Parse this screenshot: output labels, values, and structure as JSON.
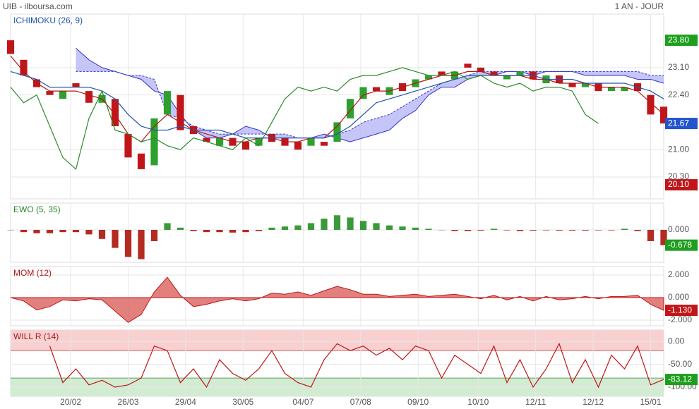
{
  "header": {
    "title": "UIB - ilboursa.com",
    "period": "1 AN - JOUR"
  },
  "chart_data": [
    {
      "type": "candlestick",
      "title": "ICHIMOKU (26, 9)",
      "title_color": "#2255aa",
      "x": [
        0,
        5,
        10,
        15,
        20,
        25,
        30,
        35,
        40,
        45,
        50,
        55,
        60,
        65,
        70,
        75,
        80,
        85,
        90,
        95,
        100,
        105,
        110,
        115,
        120,
        125,
        130,
        135,
        140,
        145,
        150,
        155,
        160,
        165,
        170,
        175,
        180,
        185,
        190,
        195,
        200,
        205,
        210,
        215,
        220,
        225,
        230,
        235,
        240,
        245,
        250
      ],
      "xlim": [
        0,
        250
      ],
      "open": [
        23.8,
        23.3,
        22.8,
        22.5,
        22.3,
        22.7,
        22.5,
        22.2,
        22.3,
        21.4,
        20.9,
        20.6,
        21.9,
        22.4,
        21.6,
        21.3,
        21.1,
        21.3,
        21.2,
        21.1,
        21.4,
        21.3,
        21.2,
        21.1,
        21.2,
        21.2,
        21.8,
        22.3,
        22.6,
        22.4,
        22.7,
        22.6,
        22.8,
        23.0,
        22.8,
        23.2,
        23.1,
        23.0,
        22.8,
        22.9,
        23.0,
        22.7,
        22.9,
        22.7,
        22.6,
        22.7,
        22.5,
        22.5,
        22.7,
        22.4,
        22.1
      ],
      "close": [
        23.45,
        22.9,
        22.6,
        22.4,
        22.5,
        22.6,
        22.2,
        22.4,
        21.6,
        20.8,
        20.5,
        21.8,
        22.5,
        21.5,
        21.4,
        21.2,
        21.3,
        21.1,
        21.0,
        21.3,
        21.2,
        21.1,
        21.0,
        21.3,
        21.1,
        21.7,
        22.3,
        22.6,
        22.5,
        22.6,
        22.5,
        22.8,
        22.9,
        22.9,
        23.0,
        23.1,
        23.0,
        22.9,
        22.9,
        23.0,
        22.8,
        22.9,
        22.7,
        22.6,
        22.7,
        22.5,
        22.6,
        22.6,
        22.5,
        21.9,
        21.67
      ],
      "up_color": "#2ea02e",
      "down_color": "#c0161a",
      "lines": [
        {
          "color": "#b01818",
          "values": [
            23.4,
            23.0,
            22.7,
            22.5,
            22.5,
            22.5,
            22.4,
            22.3,
            21.9,
            21.4,
            21.2,
            21.6,
            21.9,
            21.7,
            21.5,
            21.4,
            21.3,
            21.2,
            21.2,
            21.3,
            21.3,
            21.2,
            21.2,
            21.3,
            21.3,
            21.6,
            22.0,
            22.4,
            22.5,
            22.5,
            22.6,
            22.7,
            22.8,
            22.9,
            22.9,
            23.0,
            23.0,
            22.9,
            22.9,
            22.9,
            22.8,
            22.8,
            22.7,
            22.7,
            22.7,
            22.6,
            22.6,
            22.6,
            22.5,
            22.2,
            21.9
          ]
        },
        {
          "color": "#2255aa",
          "values": [
            23.0,
            22.9,
            22.8,
            22.6,
            22.6,
            22.6,
            22.6,
            22.5,
            22.3,
            21.9,
            21.6,
            21.5,
            21.5,
            21.6,
            21.5,
            21.5,
            21.5,
            21.4,
            21.3,
            21.3,
            21.3,
            21.3,
            21.3,
            21.3,
            21.3,
            21.4,
            21.6,
            21.9,
            22.2,
            22.3,
            22.4,
            22.5,
            22.6,
            22.7,
            22.8,
            22.9,
            22.9,
            22.9,
            22.9,
            22.9,
            22.9,
            22.8,
            22.8,
            22.8,
            22.7,
            22.7,
            22.7,
            22.7,
            22.6,
            22.5,
            22.3
          ]
        },
        {
          "color": "#2a8a2a",
          "values": [
            22.6,
            22.2,
            22.4,
            21.6,
            20.8,
            20.5,
            21.8,
            22.5,
            21.5,
            21.4,
            21.2,
            21.3,
            21.1,
            21.0,
            21.3,
            21.2,
            21.1,
            21.0,
            21.3,
            21.1,
            21.7,
            22.3,
            22.6,
            22.5,
            22.6,
            22.5,
            22.8,
            22.9,
            22.9,
            23.0,
            23.1,
            23.0,
            22.9,
            22.9,
            23.0,
            22.8,
            22.9,
            22.7,
            22.6,
            22.7,
            22.5,
            22.6,
            22.6,
            22.5,
            21.9,
            21.67,
            null,
            null,
            null,
            null,
            null
          ]
        }
      ],
      "cloud": {
        "color": "#b7b7f5",
        "edge": "#3333cc",
        "a": [
          null,
          null,
          null,
          null,
          null,
          23.6,
          23.3,
          23.1,
          23.0,
          22.9,
          22.8,
          22.5,
          22.4,
          21.9,
          21.5,
          21.3,
          21.3,
          21.4,
          21.6,
          21.5,
          21.3,
          21.3,
          21.3,
          21.3,
          21.4,
          21.3,
          21.2,
          21.3,
          21.4,
          21.5,
          21.8,
          22.0,
          22.4,
          22.6,
          22.6,
          22.8,
          22.9,
          22.9,
          23.0,
          23.0,
          22.9,
          23.0,
          23.0,
          23.0,
          22.9,
          22.9,
          22.9,
          22.9,
          22.8,
          22.8,
          22.7
        ],
        "b": [
          null,
          null,
          null,
          null,
          null,
          23.0,
          23.0,
          23.0,
          23.0,
          22.9,
          22.9,
          22.8,
          21.9,
          21.8,
          21.6,
          21.5,
          21.4,
          21.4,
          21.4,
          21.4,
          21.4,
          21.4,
          21.3,
          21.3,
          21.3,
          21.4,
          21.5,
          21.7,
          21.8,
          21.9,
          22.1,
          22.3,
          22.5,
          22.7,
          22.8,
          22.9,
          23.0,
          23.0,
          23.0,
          23.0,
          23.0,
          23.0,
          23.0,
          23.0,
          23.0,
          23.0,
          23.0,
          23.0,
          23.0,
          22.9,
          22.9
        ]
      },
      "ylim": [
        19.74,
        24.47
      ],
      "yticks": [
        {
          "value": 23.1,
          "label": "23.10"
        },
        {
          "value": 22.4,
          "label": "22.40"
        },
        {
          "value": 21.0,
          "label": "21.00"
        },
        {
          "value": 20.3,
          "label": "20.30"
        }
      ],
      "badges": [
        {
          "value": 23.8,
          "label": "23.80",
          "color": "#1e9e1e"
        },
        {
          "value": 21.67,
          "label": "21.67",
          "color": "#2255cc"
        },
        {
          "value": 20.1,
          "label": "20.10",
          "color": "#c0161a"
        }
      ],
      "grid": true
    },
    {
      "type": "bar",
      "title": "EWO (5, 35)",
      "title_color": "#2a8a2a",
      "values": [
        0,
        -0.1,
        -0.15,
        -0.15,
        -0.1,
        -0.1,
        -0.2,
        -0.4,
        -0.8,
        -1.2,
        -1.3,
        -0.5,
        0.3,
        0.1,
        -0.05,
        -0.1,
        -0.1,
        -0.12,
        -0.1,
        -0.05,
        0.1,
        0.15,
        0.2,
        0.3,
        0.5,
        0.65,
        0.55,
        0.4,
        0.3,
        0.2,
        0.15,
        0.1,
        0.05,
        0,
        -0.05,
        -0.05,
        -0.03,
        0.05,
        -0.02,
        -0.05,
        -0.03,
        -0.02,
        -0.03,
        -0.03,
        -0.03,
        -0.02,
        -0.02,
        0.05,
        -0.05,
        -0.5,
        -0.678
      ],
      "up_color": "#3a9a3a",
      "down_color": "#b52a22",
      "ylim": [
        -1.44,
        1.19
      ],
      "yticks": [
        {
          "value": 0,
          "label": "0.000"
        }
      ],
      "badges": [
        {
          "value": -0.678,
          "label": "-0.678",
          "color": "#1e9e1e"
        }
      ],
      "grid": true
    },
    {
      "type": "area",
      "title": "MOM (12)",
      "title_color": "#b01818",
      "values": [
        0,
        -0.3,
        -1.1,
        -0.8,
        -0.2,
        -0.3,
        -0.1,
        -0.2,
        -1.2,
        -2.2,
        -1.5,
        0.5,
        1.8,
        0.2,
        -0.8,
        -0.6,
        -0.3,
        -0.1,
        -0.3,
        -0.1,
        0.4,
        0.3,
        0.5,
        0.2,
        0.6,
        1.0,
        0.7,
        0.3,
        0.3,
        0.1,
        0.2,
        0.3,
        0.1,
        0.2,
        0.3,
        0.1,
        -0.1,
        0.2,
        -0.2,
        0.1,
        -0.3,
        0.1,
        -0.2,
        -0.1,
        0.1,
        -0.1,
        0.1,
        0.1,
        0.2,
        -0.6,
        -1.13
      ],
      "color": "#c0161a",
      "fill": "#dd6a66",
      "ylim": [
        -2.5,
        2.75
      ],
      "yticks": [
        {
          "value": 2,
          "label": "2.000"
        },
        {
          "value": 0,
          "label": "0.000"
        },
        {
          "value": -2,
          "label": "-2.000"
        }
      ],
      "badges": [
        {
          "value": -1.13,
          "label": "-1.130",
          "color": "#c0161a"
        }
      ],
      "grid": true
    },
    {
      "type": "line",
      "title": "WILL R (14)",
      "title_color": "#b01818",
      "values": [
        null,
        null,
        null,
        -10,
        -90,
        -60,
        -95,
        -85,
        -100,
        -95,
        -80,
        -10,
        -20,
        -90,
        -60,
        -100,
        -40,
        -70,
        -85,
        -60,
        -20,
        -70,
        -90,
        -100,
        -40,
        -5,
        -20,
        -10,
        -30,
        -15,
        -40,
        -10,
        -20,
        -80,
        -30,
        -50,
        -70,
        -10,
        -90,
        -40,
        -100,
        -60,
        -5,
        -90,
        -40,
        -100,
        -30,
        -60,
        -10,
        -95,
        -83.12
      ],
      "color": "#c0161a",
      "bands": [
        {
          "value": -20,
          "color": "#f9d0d0",
          "edge": "#d06060"
        },
        {
          "value": -80,
          "color": "#d2ecd2",
          "edge": "#60a060"
        }
      ],
      "ylim": [
        -120,
        25
      ],
      "yticks": [
        {
          "value": 0,
          "label": "0.00"
        },
        {
          "value": -50,
          "label": "-50.00"
        },
        {
          "value": -100,
          "label": "-100.00"
        }
      ],
      "badges": [
        {
          "value": -83.12,
          "label": "-83.12",
          "color": "#1e9e1e"
        }
      ],
      "xticks": [
        {
          "value": 23,
          "label": "20/02"
        },
        {
          "value": 45,
          "label": "26/03"
        },
        {
          "value": 67,
          "label": "29/04"
        },
        {
          "value": 89,
          "label": "30/05"
        },
        {
          "value": 112,
          "label": "04/07"
        },
        {
          "value": 134,
          "label": "07/08"
        },
        {
          "value": 156,
          "label": "09/10"
        },
        {
          "value": 179,
          "label": "10/10"
        },
        {
          "value": 201,
          "label": "12/11"
        },
        {
          "value": 223,
          "label": "12/12"
        },
        {
          "value": 245,
          "label": "15/01"
        }
      ],
      "grid": true
    }
  ]
}
